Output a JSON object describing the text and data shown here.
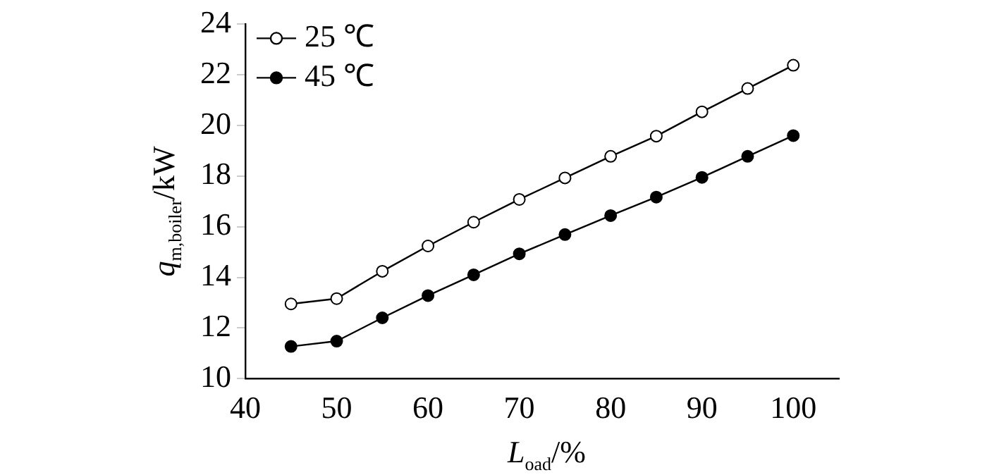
{
  "chart_data": {
    "type": "line",
    "xlabel": "L$_{oad}$/%",
    "ylabel": "q$_{m,boiler}$/kW",
    "x": [
      45,
      50,
      55,
      60,
      65,
      70,
      75,
      80,
      85,
      90,
      95,
      100
    ],
    "series": [
      {
        "name": "25 ℃",
        "color": "#000000",
        "values": [
          12.95,
          13.16,
          14.24,
          15.24,
          16.18,
          17.08,
          17.93,
          18.78,
          19.58,
          20.54,
          21.46,
          22.38
        ]
      },
      {
        "name": "45 ℃",
        "color": "#000000",
        "values": [
          11.27,
          11.48,
          12.4,
          13.28,
          14.1,
          14.93,
          15.69,
          16.44,
          17.17,
          17.95,
          18.78,
          19.6
        ]
      }
    ],
    "xlim": [
      40,
      105
    ],
    "xticks": [
      40,
      50,
      60,
      70,
      80,
      90,
      100
    ],
    "ylim": [
      10,
      24
    ],
    "yticks": [
      10,
      12,
      14,
      16,
      18,
      20,
      22,
      24
    ],
    "grid": false,
    "legend": "top left",
    "marker": "circle",
    "line_style": "solid"
  }
}
